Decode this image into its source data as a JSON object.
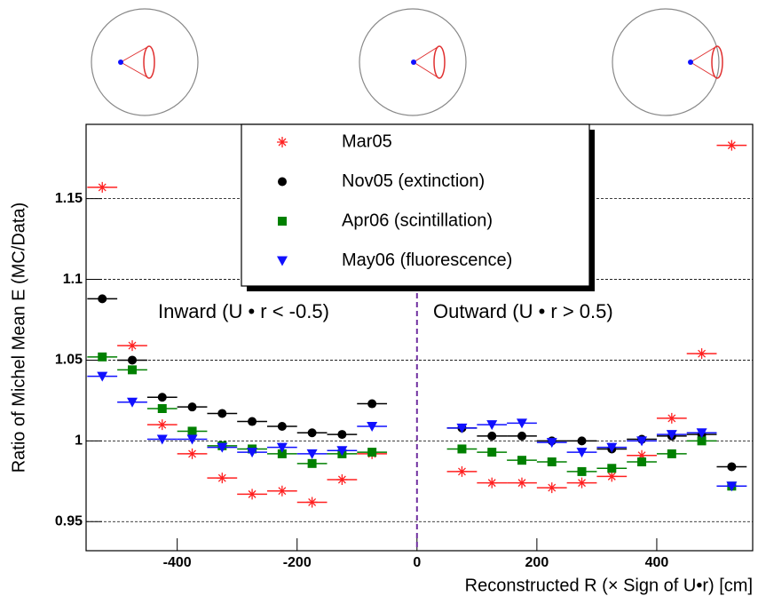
{
  "chart_data": {
    "type": "errorbar",
    "y_label": "Ratio of Michel Mean E (MC/Data)",
    "x_label": "Reconstructed R (× Sign of U•r) [cm]",
    "annotations": [
      "Inward (U  • r < -0.5)",
      "Outward (U  • r > 0.5)"
    ],
    "annotation_color": "#7030a0",
    "divider": 0,
    "x": [
      -525,
      -475,
      -425,
      -375,
      -325,
      -275,
      -225,
      -175,
      -125,
      -75,
      75,
      125,
      175,
      225,
      275,
      325,
      375,
      425,
      475,
      525
    ],
    "xerr": 25,
    "series": [
      {
        "name": "Mar05",
        "color": "#ff2020",
        "marker": "star",
        "values": [
          1.157,
          1.059,
          1.01,
          0.992,
          0.977,
          0.967,
          0.969,
          0.962,
          0.976,
          0.992,
          0.981,
          0.974,
          0.974,
          0.971,
          0.974,
          0.978,
          0.991,
          1.014,
          1.054,
          1.183
        ]
      },
      {
        "name": "Nov05 (extinction)",
        "color": "#000000",
        "marker": "circle",
        "values": [
          1.088,
          1.05,
          1.027,
          1.021,
          1.017,
          1.012,
          1.009,
          1.005,
          1.004,
          1.023,
          1.008,
          1.003,
          1.003,
          1.0,
          1.0,
          0.995,
          1.001,
          1.003,
          1.004,
          0.984
        ]
      },
      {
        "name": "Apr06 (scintillation)",
        "color": "#008000",
        "marker": "square",
        "values": [
          1.052,
          1.044,
          1.02,
          1.006,
          0.997,
          0.995,
          0.992,
          0.986,
          0.992,
          0.993,
          0.995,
          0.993,
          0.988,
          0.987,
          0.981,
          0.983,
          0.987,
          0.992,
          1.0,
          0.972
        ]
      },
      {
        "name": "May06 (fluorescence)",
        "color": "#1010ff",
        "marker": "triangle-down",
        "values": [
          1.04,
          1.024,
          1.001,
          1.001,
          0.996,
          0.993,
          0.996,
          0.992,
          0.994,
          1.009,
          1.008,
          1.01,
          1.011,
          0.999,
          0.993,
          0.996,
          1.0,
          1.004,
          1.005,
          0.972
        ]
      }
    ],
    "xlim": [
      -552,
      560
    ],
    "xticks": [
      -400,
      -200,
      0,
      200,
      400
    ],
    "ylim": [
      0.932,
      1.196
    ],
    "yticks": [
      0.95,
      1,
      1.05,
      1.1,
      1.15
    ],
    "grid": true
  }
}
